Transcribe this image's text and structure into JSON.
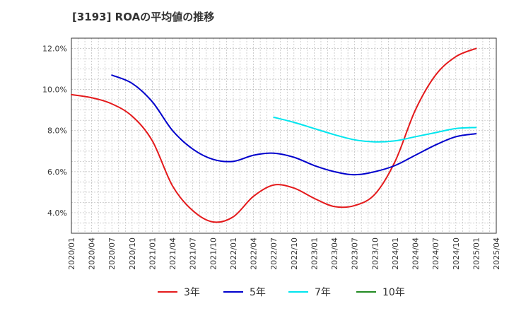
{
  "chart_data": {
    "type": "line",
    "title": "[3193]  ROAの平均値の推移",
    "ylim": [
      3.0,
      12.5
    ],
    "y_ticks": [
      4.0,
      6.0,
      8.0,
      10.0,
      12.0
    ],
    "y_tick_labels": [
      "4.0%",
      "6.0%",
      "8.0%",
      "10.0%",
      "12.0%"
    ],
    "x_tick_labels": [
      "2020/01",
      "2020/04",
      "2020/07",
      "2020/10",
      "2021/01",
      "2021/04",
      "2021/07",
      "2021/10",
      "2022/01",
      "2022/04",
      "2022/07",
      "2022/10",
      "2023/01",
      "2023/04",
      "2023/07",
      "2023/10",
      "2024/01",
      "2024/04",
      "2024/07",
      "2024/10",
      "2025/01",
      "2025/04"
    ],
    "grid": true,
    "legend_position": "bottom",
    "series": [
      {
        "name": "3年",
        "color": "#e41a1c",
        "points": [
          [
            "2020/01",
            9.75
          ],
          [
            "2020/04",
            9.6
          ],
          [
            "2020/07",
            9.3
          ],
          [
            "2020/10",
            8.7
          ],
          [
            "2021/01",
            7.5
          ],
          [
            "2021/04",
            5.3
          ],
          [
            "2021/07",
            4.1
          ],
          [
            "2021/10",
            3.55
          ],
          [
            "2022/01",
            3.8
          ],
          [
            "2022/04",
            4.8
          ],
          [
            "2022/07",
            5.35
          ],
          [
            "2022/10",
            5.2
          ],
          [
            "2023/01",
            4.7
          ],
          [
            "2023/04",
            4.3
          ],
          [
            "2023/07",
            4.35
          ],
          [
            "2023/10",
            4.9
          ],
          [
            "2024/01",
            6.5
          ],
          [
            "2024/04",
            9.0
          ],
          [
            "2024/07",
            10.7
          ],
          [
            "2024/10",
            11.6
          ],
          [
            "2025/01",
            12.0
          ]
        ]
      },
      {
        "name": "5年",
        "color": "#0000cc",
        "points": [
          [
            "2020/07",
            10.7
          ],
          [
            "2020/10",
            10.3
          ],
          [
            "2021/01",
            9.4
          ],
          [
            "2021/04",
            8.0
          ],
          [
            "2021/07",
            7.1
          ],
          [
            "2021/10",
            6.6
          ],
          [
            "2022/01",
            6.5
          ],
          [
            "2022/04",
            6.8
          ],
          [
            "2022/07",
            6.9
          ],
          [
            "2022/10",
            6.7
          ],
          [
            "2023/01",
            6.3
          ],
          [
            "2023/04",
            6.0
          ],
          [
            "2023/07",
            5.85
          ],
          [
            "2023/10",
            6.0
          ],
          [
            "2024/01",
            6.3
          ],
          [
            "2024/04",
            6.8
          ],
          [
            "2024/07",
            7.3
          ],
          [
            "2024/10",
            7.7
          ],
          [
            "2025/01",
            7.85
          ]
        ]
      },
      {
        "name": "7年",
        "color": "#00e5ee",
        "points": [
          [
            "2022/07",
            8.65
          ],
          [
            "2022/10",
            8.4
          ],
          [
            "2023/01",
            8.1
          ],
          [
            "2023/04",
            7.8
          ],
          [
            "2023/07",
            7.55
          ],
          [
            "2023/10",
            7.45
          ],
          [
            "2024/01",
            7.5
          ],
          [
            "2024/04",
            7.7
          ],
          [
            "2024/07",
            7.9
          ],
          [
            "2024/10",
            8.1
          ],
          [
            "2025/01",
            8.15
          ]
        ]
      },
      {
        "name": "10年",
        "color": "#228b22",
        "points": []
      }
    ]
  }
}
